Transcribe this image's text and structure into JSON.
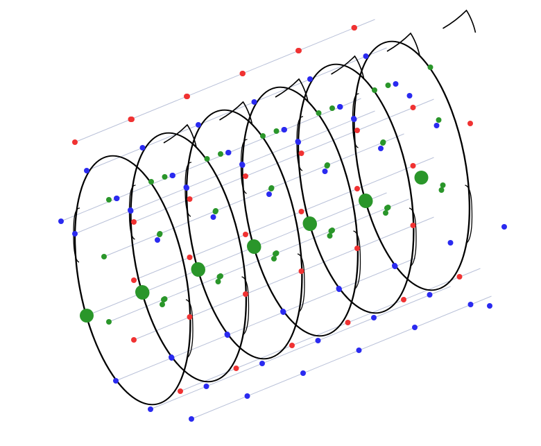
{
  "diagram": {
    "description_visible_text": "",
    "colors": {
      "head_outline": "#000000",
      "track_line": "#b8c0d8",
      "sensor_red": "#f03232",
      "sensor_blue": "#2a2af0",
      "sensor_green": "#2a962a",
      "electrode_large": "#2a962a"
    },
    "head_count": 6,
    "views": "stacked-head-sensor-montage"
  }
}
